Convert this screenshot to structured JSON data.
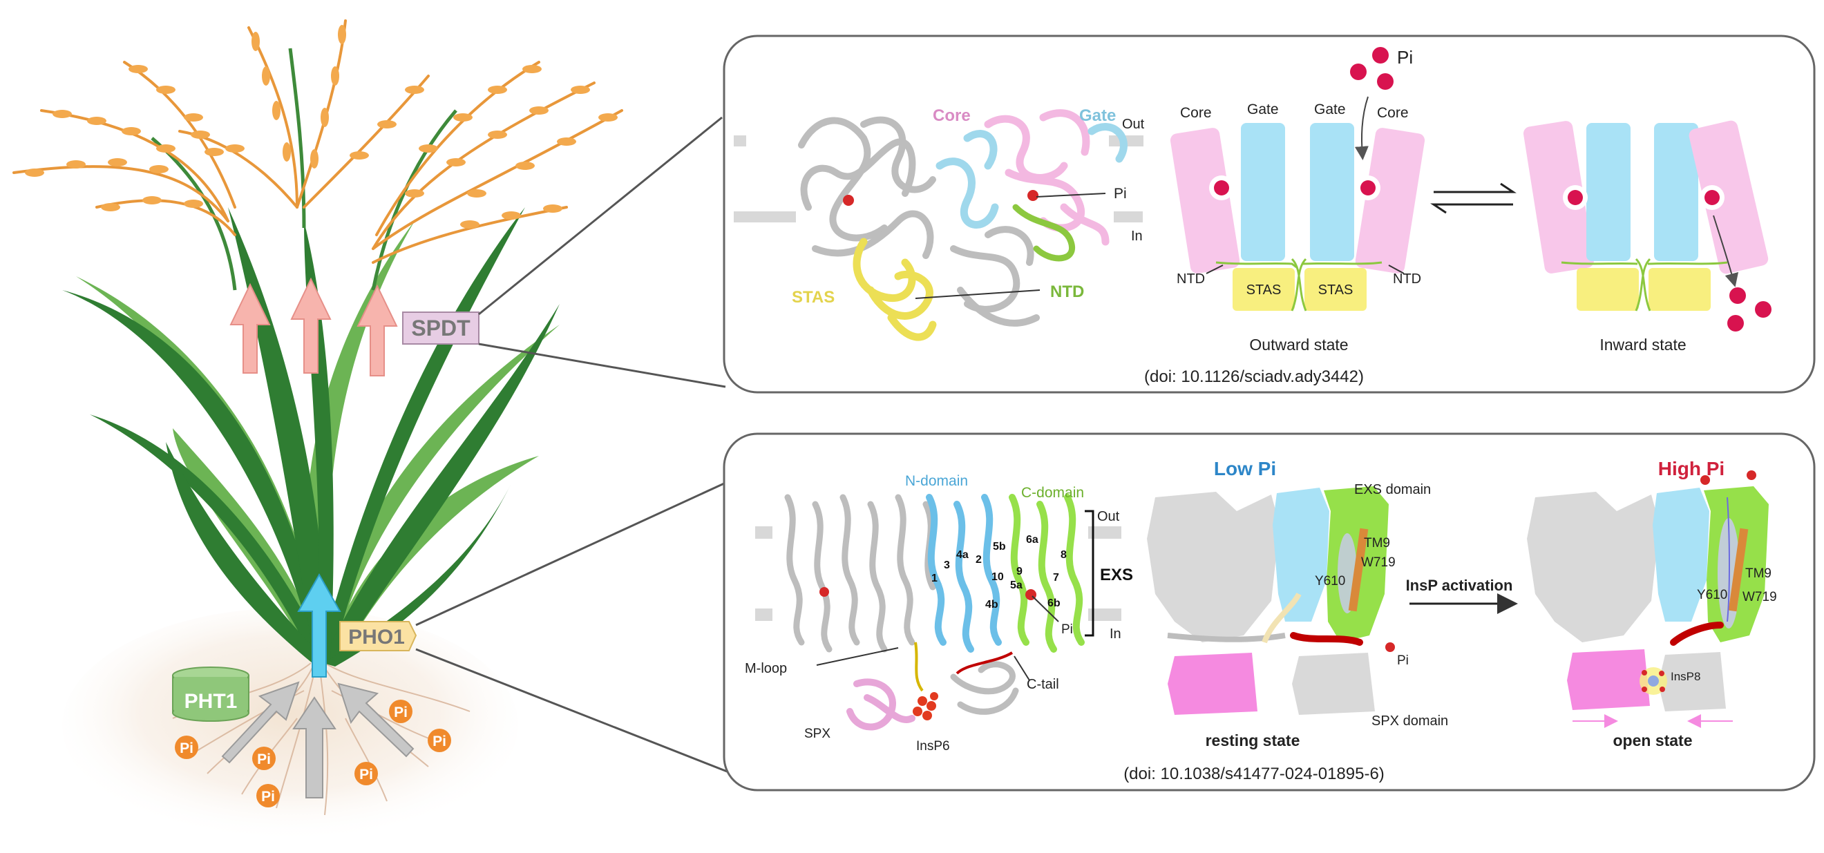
{
  "plant": {
    "spdt_label": "SPDT",
    "pho1_label": "PHO1",
    "pht1_label": "PHT1",
    "pi_badge": "Pi"
  },
  "panel_top": {
    "structure": {
      "core": "Core",
      "gate": "Gate",
      "out": "Out",
      "in": "In",
      "pi": "Pi",
      "stas": "STAS",
      "ntd": "NTD"
    },
    "outward": {
      "pi": "Pi",
      "core_left": "Core",
      "gate_left": "Gate",
      "gate_right": "Gate",
      "core_right": "Core",
      "ntd_left": "NTD",
      "ntd_right": "NTD",
      "stas_left": "STAS",
      "stas_right": "STAS",
      "caption": "Outward state"
    },
    "inward": {
      "caption": "Inward state"
    },
    "doi": "(doi: 10.1126/sciadv.ady3442)"
  },
  "panel_bottom": {
    "structure": {
      "n_domain": "N-domain",
      "c_domain": "C-domain",
      "out": "Out",
      "in": "In",
      "exs": "EXS",
      "m_loop": "M-loop",
      "c_tail": "C-tail",
      "spx": "SPX",
      "insp6": "InsP6",
      "pi": "Pi",
      "helix_labels": [
        "1",
        "2",
        "3",
        "4a",
        "4b",
        "5a",
        "5b",
        "6a",
        "6b",
        "7",
        "8",
        "9",
        "10"
      ]
    },
    "low": {
      "title": "Low Pi",
      "exs_domain": "EXS domain",
      "tm9": "TM9",
      "w719": "W719",
      "y610": "Y610",
      "pi": "Pi",
      "spx_domain": "SPX domain",
      "caption": "resting state"
    },
    "arrow_label": "InsP activation",
    "high": {
      "title": "High Pi",
      "tm9": "TM9",
      "w719": "W719",
      "y610": "Y610",
      "insp8": "InsP8",
      "caption": "open state"
    },
    "doi": "(doi: 10.1038/s41477-024-01895-6)"
  },
  "colors": {
    "grain": "#f0a64a",
    "leaf_dark": "#2f7d32",
    "leaf_light": "#6cb454",
    "pink_arrow": "#f7b4ad",
    "blue_arrow": "#5ecff0",
    "core": "#f8c7ea",
    "gate": "#a9e2f6",
    "stas": "#f8ef7f",
    "pi_dot": "#d8134f",
    "pi_badge": "#f08a2c",
    "n_domain": "#6bbfe8",
    "c_domain": "#96e04a",
    "spx": "#f58ae0",
    "low_title": "#2d86c8",
    "high_title": "#d0213c"
  }
}
